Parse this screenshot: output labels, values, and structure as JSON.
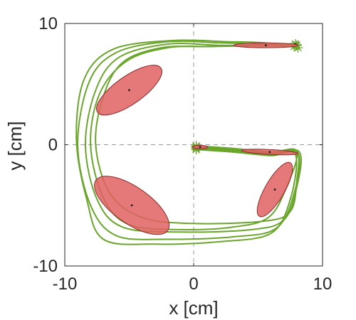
{
  "chart_data": {
    "type": "scatter",
    "title": "",
    "xlabel": "x [cm]",
    "ylabel": "y [cm]",
    "xlim": [
      -10,
      10
    ],
    "ylim": [
      -10,
      10
    ],
    "xticks": [
      -10,
      0,
      10
    ],
    "yticks": [
      -10,
      0,
      10
    ],
    "xtick_labels": [
      "-10",
      "0",
      "10"
    ],
    "ytick_labels": [
      "-10",
      "0",
      "10"
    ],
    "zero_lines": true,
    "grid": false,
    "colors": {
      "trajectory": "#6aa52c",
      "ellipse_fill": "#e06262",
      "ellipse_edge": "#8c2a2a",
      "center": "#1a1a1a",
      "zero_line": "#9a9a9a",
      "axes": "#262626"
    },
    "trajectories": [
      {
        "points": [
          [
            0.2,
            -0.1
          ],
          [
            3,
            -0.3
          ],
          [
            6,
            -0.6
          ],
          [
            8,
            -0.5
          ],
          [
            8,
            -3
          ],
          [
            7.5,
            -5.5
          ],
          [
            5.5,
            -6.3
          ],
          [
            0,
            -6.5
          ],
          [
            -4,
            -6
          ],
          [
            -6.5,
            -4
          ],
          [
            -7.6,
            0
          ],
          [
            -7,
            4
          ],
          [
            -5.5,
            6.8
          ],
          [
            -2.5,
            8
          ],
          [
            1,
            8.1
          ],
          [
            4,
            8.2
          ],
          [
            7.8,
            8.1
          ]
        ]
      },
      {
        "points": [
          [
            0.2,
            -0.2
          ],
          [
            3,
            -0.4
          ],
          [
            6,
            -0.7
          ],
          [
            8.2,
            -0.6
          ],
          [
            8,
            -3.5
          ],
          [
            7,
            -6.2
          ],
          [
            4.5,
            -7
          ],
          [
            -1,
            -7.2
          ],
          [
            -5.5,
            -6.8
          ],
          [
            -7.5,
            -4.5
          ],
          [
            -8.4,
            0
          ],
          [
            -7.6,
            4.5
          ],
          [
            -5.8,
            7.2
          ],
          [
            -2,
            8.3
          ],
          [
            2,
            8.2
          ],
          [
            5,
            8.2
          ],
          [
            7.9,
            8.3
          ]
        ]
      },
      {
        "points": [
          [
            0.2,
            -0.3
          ],
          [
            3,
            -0.5
          ],
          [
            6,
            -0.8
          ],
          [
            8.1,
            -0.7
          ],
          [
            7.8,
            -4
          ],
          [
            6.4,
            -6.9
          ],
          [
            3,
            -7.6
          ],
          [
            -2,
            -7.8
          ],
          [
            -6,
            -7.5
          ],
          [
            -8,
            -5
          ],
          [
            -9,
            0
          ],
          [
            -8.1,
            5.2
          ],
          [
            -6,
            7.6
          ],
          [
            -2,
            8.5
          ],
          [
            2,
            8.4
          ],
          [
            5.5,
            8.3
          ],
          [
            8,
            8.2
          ]
        ]
      },
      {
        "points": [
          [
            0.2,
            -0.4
          ],
          [
            3,
            -0.6
          ],
          [
            6,
            -0.9
          ],
          [
            7.9,
            -0.8
          ],
          [
            7.5,
            -4.5
          ],
          [
            6,
            -7.3
          ],
          [
            2,
            -8
          ],
          [
            -3,
            -8.2
          ],
          [
            -7,
            -7.8
          ],
          [
            -8.3,
            -4.5
          ],
          [
            -9.1,
            0.5
          ],
          [
            -8.5,
            5.4
          ],
          [
            -6.2,
            7.9
          ],
          [
            -1.5,
            8.6
          ],
          [
            2.5,
            8.5
          ],
          [
            5.5,
            8.4
          ],
          [
            8.1,
            8.0
          ]
        ]
      },
      {
        "points": [
          [
            0.2,
            -0.15
          ],
          [
            3,
            -0.35
          ],
          [
            6,
            -0.65
          ],
          [
            8,
            -0.55
          ],
          [
            7.2,
            -3.5
          ],
          [
            5.8,
            -6
          ],
          [
            3,
            -6.8
          ],
          [
            -1,
            -7
          ],
          [
            -5,
            -6.6
          ],
          [
            -7,
            -4.4
          ],
          [
            -8,
            0
          ],
          [
            -7.3,
            4.2
          ],
          [
            -5.2,
            6.9
          ],
          [
            -2,
            8.0
          ],
          [
            1.5,
            8.1
          ],
          [
            4.5,
            8.15
          ],
          [
            7.9,
            8.2
          ]
        ]
      }
    ],
    "ellipses": [
      {
        "center": [
          7.9,
          8.3
        ],
        "rx": 0.12,
        "ry": 0.12,
        "angle": 0,
        "hub": true
      },
      {
        "center": [
          0.5,
          -0.2
        ],
        "rx": 0.6,
        "ry": 0.15,
        "angle": 0
      },
      {
        "center": [
          5.6,
          8.2
        ],
        "rx": 2.5,
        "ry": 0.2,
        "angle": 0
      },
      {
        "center": [
          -5,
          4.5
        ],
        "rx": 3.0,
        "ry": 1.15,
        "angle": 35
      },
      {
        "center": [
          -4.8,
          -5.0
        ],
        "rx": 3.4,
        "ry": 1.5,
        "angle": -35
      },
      {
        "center": [
          5.9,
          -0.6
        ],
        "rx": 2.2,
        "ry": 0.2,
        "angle": -3
      },
      {
        "center": [
          6.3,
          -3.7
        ],
        "rx": 2.4,
        "ry": 0.8,
        "angle": 60
      }
    ]
  }
}
